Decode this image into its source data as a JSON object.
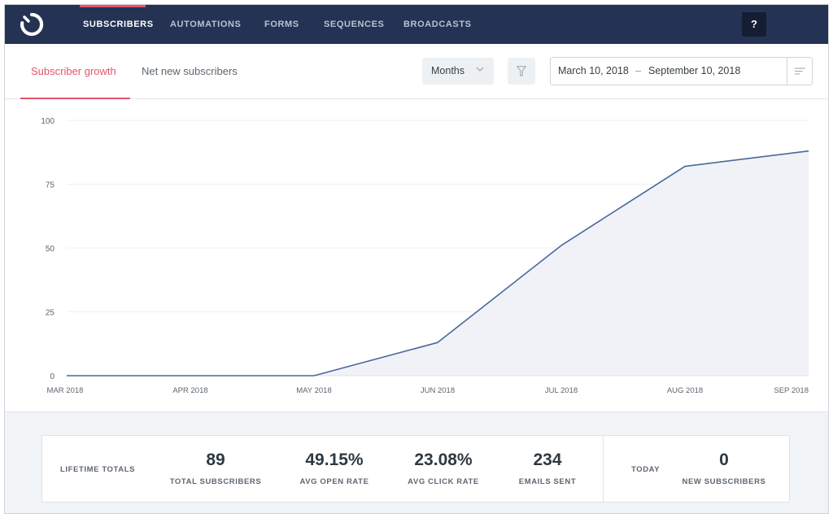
{
  "nav": {
    "items": [
      {
        "label": "SUBSCRIBERS",
        "active": true
      },
      {
        "label": "AUTOMATIONS",
        "active": false
      },
      {
        "label": "FORMS",
        "active": false
      },
      {
        "label": "SEQUENCES",
        "active": false
      },
      {
        "label": "BROADCASTS",
        "active": false
      }
    ],
    "help_label": "?"
  },
  "tabs": [
    {
      "label": "Subscriber growth",
      "active": true
    },
    {
      "label": "Net new subscribers",
      "active": false
    }
  ],
  "period_select": {
    "value": "Months"
  },
  "date_range": {
    "start": "March 10, 2018",
    "separator": "–",
    "end": "September 10, 2018"
  },
  "colors": {
    "brand": "#243353",
    "accent": "#e5566a",
    "line": "#4a6899",
    "area": "#f0f2f7"
  },
  "chart_data": {
    "type": "area",
    "categories": [
      "MAR 2018",
      "APR 2018",
      "MAY 2018",
      "JUN 2018",
      "JUL 2018",
      "AUG 2018",
      "SEP 2018"
    ],
    "series": [
      {
        "values": [
          0,
          0,
          0,
          13,
          51,
          82,
          88
        ]
      }
    ],
    "yticks": [
      "0",
      "25",
      "50",
      "75",
      "100"
    ],
    "ylim": [
      0,
      100
    ],
    "grid": true
  },
  "stats": {
    "lifetime_label": "LIFETIME TOTALS",
    "items": [
      {
        "value": "89",
        "label": "TOTAL SUBSCRIBERS"
      },
      {
        "value": "49.15%",
        "label": "AVG OPEN RATE"
      },
      {
        "value": "23.08%",
        "label": "AVG CLICK RATE"
      },
      {
        "value": "234",
        "label": "EMAILS SENT"
      }
    ],
    "today_label": "TODAY",
    "today": {
      "value": "0",
      "label": "NEW SUBSCRIBERS"
    }
  }
}
